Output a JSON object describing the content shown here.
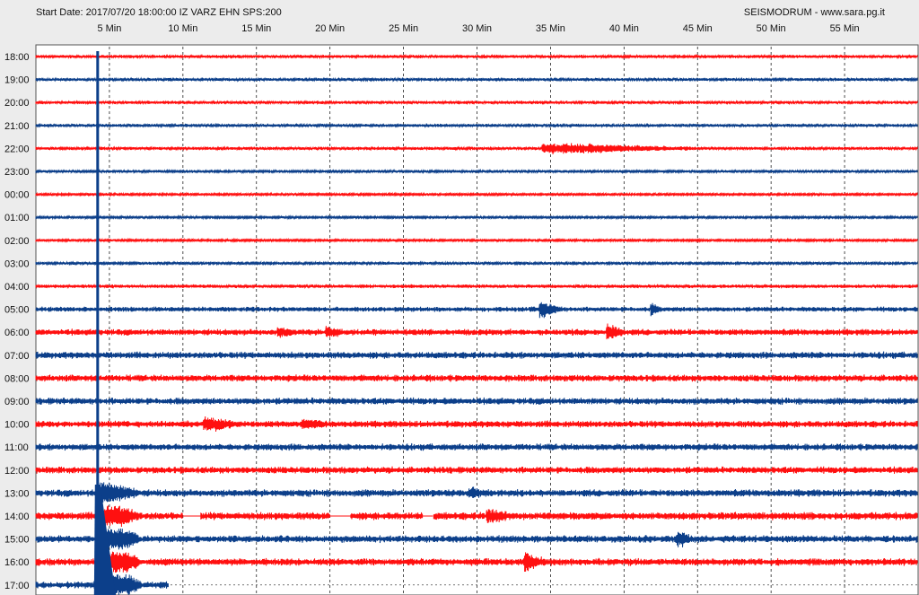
{
  "header": {
    "start_info": "Start Date: 2017/07/20 18:00:00 IZ VARZ EHN SPS:200",
    "brand": "SEISMODRUM - www.sara.pg.it"
  },
  "colors": {
    "background": "#ececec",
    "plot_background": "#ffffff",
    "trace_red": "#ff1010",
    "trace_blue": "#0c3f8a",
    "grid": "#222222"
  },
  "chart_data": {
    "type": "line",
    "title": "",
    "xlabel": "",
    "ylabel": "",
    "x_unit": "Min",
    "xlim": [
      0,
      60
    ],
    "x_ticks": [
      5,
      10,
      15,
      20,
      25,
      30,
      35,
      40,
      45,
      50,
      55
    ],
    "x_tick_labels": [
      "5 Min",
      "10 Min",
      "15 Min",
      "20 Min",
      "25 Min",
      "30 Min",
      "35 Min",
      "40 Min",
      "45 Min",
      "50 Min",
      "55 Min"
    ],
    "grid": true,
    "rows": [
      {
        "label": "18:00",
        "color": "red",
        "noise": 0.35
      },
      {
        "label": "19:00",
        "color": "blue",
        "noise": 0.35
      },
      {
        "label": "20:00",
        "color": "red",
        "noise": 0.35
      },
      {
        "label": "21:00",
        "color": "blue",
        "noise": 0.35
      },
      {
        "label": "22:00",
        "color": "red",
        "noise": 0.35
      },
      {
        "label": "23:00",
        "color": "blue",
        "noise": 0.3
      },
      {
        "label": "00:00",
        "color": "red",
        "noise": 0.25
      },
      {
        "label": "01:00",
        "color": "blue",
        "noise": 0.25
      },
      {
        "label": "02:00",
        "color": "red",
        "noise": 0.25
      },
      {
        "label": "03:00",
        "color": "blue",
        "noise": 0.3
      },
      {
        "label": "04:00",
        "color": "red",
        "noise": 0.4
      },
      {
        "label": "05:00",
        "color": "blue",
        "noise": 0.55
      },
      {
        "label": "06:00",
        "color": "red",
        "noise": 0.7
      },
      {
        "label": "07:00",
        "color": "blue",
        "noise": 0.75
      },
      {
        "label": "08:00",
        "color": "red",
        "noise": 0.75
      },
      {
        "label": "09:00",
        "color": "blue",
        "noise": 0.75
      },
      {
        "label": "10:00",
        "color": "red",
        "noise": 0.75
      },
      {
        "label": "11:00",
        "color": "blue",
        "noise": 0.75
      },
      {
        "label": "12:00",
        "color": "red",
        "noise": 0.75
      },
      {
        "label": "13:00",
        "color": "blue",
        "noise": 0.8
      },
      {
        "label": "14:00",
        "color": "red",
        "noise": 0.85
      },
      {
        "label": "15:00",
        "color": "blue",
        "noise": 0.8
      },
      {
        "label": "16:00",
        "color": "red",
        "noise": 0.8
      },
      {
        "label": "17:00",
        "color": "blue",
        "noise": 0.8
      }
    ],
    "events": [
      {
        "row": 4,
        "minute": 34.5,
        "amp": 1.4,
        "duration": 11
      },
      {
        "row": 11,
        "minute": 34.3,
        "amp": 2.2,
        "duration": 1.5
      },
      {
        "row": 11,
        "minute": 41.9,
        "amp": 1.2,
        "duration": 0.8
      },
      {
        "row": 12,
        "minute": 38.9,
        "amp": 2.1,
        "duration": 1.2
      },
      {
        "row": 12,
        "minute": 16.5,
        "amp": 1.1,
        "duration": 1.2
      },
      {
        "row": 12,
        "minute": 19.8,
        "amp": 1.1,
        "duration": 1.2
      },
      {
        "row": 16,
        "minute": 11.5,
        "amp": 1.6,
        "duration": 2.5
      },
      {
        "row": 16,
        "minute": 18.2,
        "amp": 1.0,
        "duration": 1.5
      },
      {
        "row": 19,
        "minute": 29.5,
        "amp": 1.3,
        "duration": 1.5
      },
      {
        "row": 20,
        "minute": 30.7,
        "amp": 1.8,
        "duration": 1.5
      },
      {
        "row": 21,
        "minute": 43.7,
        "amp": 1.9,
        "duration": 1.0
      },
      {
        "row": 22,
        "minute": 33.3,
        "amp": 2.3,
        "duration": 1.5
      }
    ],
    "gaps": [
      {
        "row": 20,
        "from": 10.0,
        "to": 11.2
      },
      {
        "row": 20,
        "from": 20.0,
        "to": 21.4
      },
      {
        "row": 20,
        "from": 26.3,
        "to": 27.0
      }
    ],
    "main_quake_minute": 4.2,
    "trace_end_minute": 9.0
  }
}
